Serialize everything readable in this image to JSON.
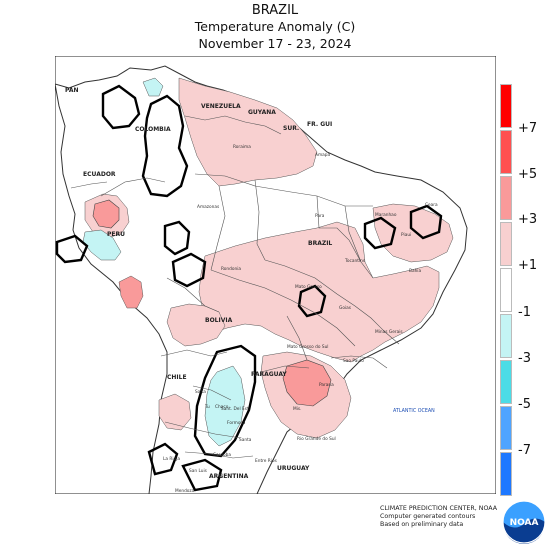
{
  "header": {
    "country": "BRAZIL",
    "product": "Temperature Anomaly (C)",
    "period": "November 17 - 23, 2024"
  },
  "legend": {
    "items": [
      {
        "label": "+7",
        "color": "#ff0000"
      },
      {
        "label": "+5",
        "color": "#ff5050"
      },
      {
        "label": "+3",
        "color": "#f99a9a"
      },
      {
        "label": "+1",
        "color": "#f8d0d0"
      },
      {
        "label": "-1",
        "color": "#ffffff"
      },
      {
        "label": "-3",
        "color": "#c4f4f4"
      },
      {
        "label": "-5",
        "color": "#4cdce6"
      },
      {
        "label": "-7",
        "color": "#4fa4ff"
      },
      {
        "label": "",
        "color": "#1e78ff"
      }
    ]
  },
  "map": {
    "country_labels": [
      "PAN",
      "VENEZUELA",
      "GUYANA",
      "SUR.",
      "FR. GUI",
      "COLOMBIA",
      "ECUADOR",
      "PERU",
      "BRAZIL",
      "BOLIVIA",
      "CHILE",
      "PARAGUAY",
      "ARGENTINA",
      "URUGUAY"
    ],
    "state_labels": [
      "Roraima",
      "Amapa",
      "Amazonas",
      "Para",
      "Maranhao",
      "Ceara",
      "Piaui",
      "Tocantins",
      "Rondonia",
      "Bahia",
      "Mato Grosso",
      "Goias",
      "Minas Gerais",
      "Mato Grosso do Sul",
      "Sao Paulo",
      "Parana",
      "Rio Grande do Sul",
      "Salta",
      "Tu",
      "Sant. Del Est.",
      "Formosa",
      "Chaco",
      "Cordoba",
      "Santa",
      "Entre Rios",
      "San Luis",
      "La Rioja",
      "Mendoza",
      "Mis."
    ],
    "ocean_label": "ATLANTIC OCEAN"
  },
  "footer": {
    "line1": "CLIMATE PREDICTION CENTER, NOAA",
    "line2": "Computer generated contours",
    "line3": "Based on preliminary data",
    "logo_text": "NOAA"
  }
}
